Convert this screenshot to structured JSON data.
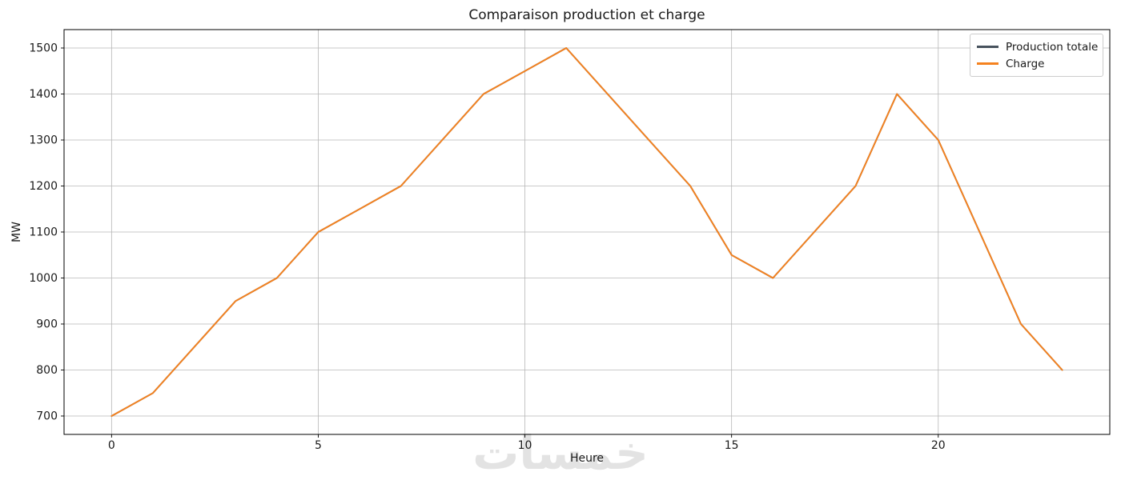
{
  "title": "Comparaison production et charge",
  "watermark": {
    "text": "خمسات",
    "color": "#e3e3e3"
  },
  "chart_data": {
    "type": "line",
    "title": "Comparaison production et charge",
    "xlabel": "Heure",
    "ylabel": "MW",
    "x": [
      0,
      1,
      2,
      3,
      4,
      5,
      6,
      7,
      8,
      9,
      10,
      11,
      12,
      13,
      14,
      15,
      16,
      17,
      18,
      19,
      20,
      21,
      22,
      23
    ],
    "series": [
      {
        "name": "Production totale",
        "color": "#47525d",
        "values": [
          700,
          750,
          850,
          950,
          1000,
          1100,
          1150,
          1200,
          1300,
          1400,
          1450,
          1500,
          1400,
          1300,
          1200,
          1050,
          1000,
          1100,
          1200,
          1400,
          1300,
          1100,
          900,
          800
        ]
      },
      {
        "name": "Charge",
        "color": "#f5821f",
        "values": [
          700,
          750,
          850,
          950,
          1000,
          1100,
          1150,
          1200,
          1300,
          1400,
          1450,
          1500,
          1400,
          1300,
          1200,
          1050,
          1000,
          1100,
          1200,
          1400,
          1300,
          1100,
          900,
          800
        ]
      }
    ],
    "xticks": [
      0,
      5,
      10,
      15,
      20
    ],
    "yticks": [
      700,
      800,
      900,
      1000,
      1100,
      1200,
      1300,
      1400,
      1500
    ],
    "xlim": [
      -1.15,
      24.15
    ],
    "ylim": [
      660,
      1540
    ],
    "grid": true,
    "grid_color": "#b7b7b7",
    "axis_color": "#000000",
    "tick_label_color": "#1a1a1a",
    "legend_position": "upper right"
  }
}
